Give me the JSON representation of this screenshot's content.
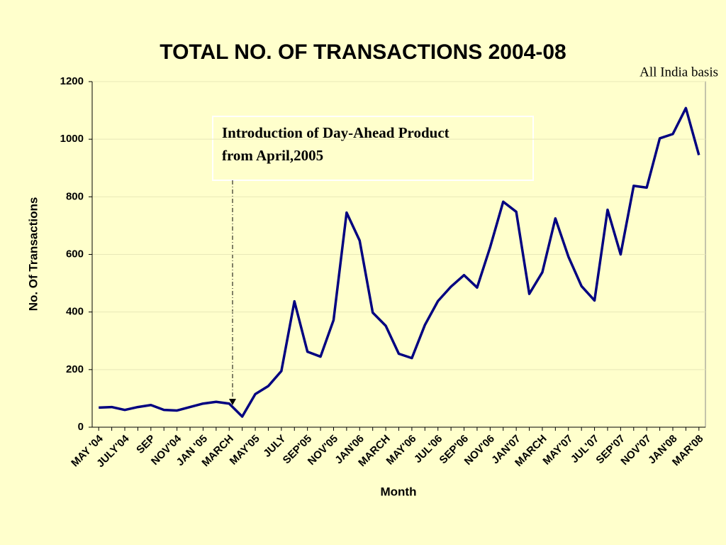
{
  "chart_data": {
    "type": "line",
    "title": "TOTAL NO. OF TRANSACTIONS  2004-08",
    "subtitle": "All India basis",
    "x_label": "Month",
    "y_label": "No. Of Transactions",
    "annotation": [
      "Introduction of Day-Ahead Product",
      "from April,2005"
    ],
    "categories": [
      "MAY '04",
      null,
      "JULY'04",
      null,
      "SEP",
      null,
      "NOV'04",
      null,
      "JAN '05",
      null,
      "MARCH",
      null,
      "MAY'05",
      null,
      "JULY",
      null,
      "SEP'05",
      null,
      "NOV'05",
      null,
      "JAN'06",
      null,
      "MARCH",
      null,
      "MAY'06",
      null,
      "JUL'06",
      null,
      "SEP'06",
      null,
      "NOV'06",
      null,
      "JAN'07",
      null,
      "MARCH",
      null,
      "MAY'07",
      null,
      "JUL'07",
      null,
      "SEP'07",
      null,
      "NOV'07",
      null,
      "JAN'08",
      null,
      "MAR'08"
    ],
    "series": [
      {
        "name": "Transactions",
        "color": "#000080",
        "values": [
          68,
          70,
          60,
          70,
          77,
          60,
          58,
          70,
          82,
          88,
          82,
          37,
          115,
          143,
          195,
          437,
          262,
          245,
          372,
          745,
          648,
          398,
          352,
          255,
          240,
          355,
          438,
          488,
          528,
          485,
          625,
          783,
          748,
          463,
          538,
          725,
          592,
          490,
          440,
          755,
          600,
          838,
          832,
          1003,
          1018,
          1108,
          945
        ]
      }
    ],
    "ylim": [
      0,
      1200
    ],
    "yticks": [
      0,
      200,
      400,
      600,
      800,
      1000,
      1200
    ],
    "grid": true
  }
}
